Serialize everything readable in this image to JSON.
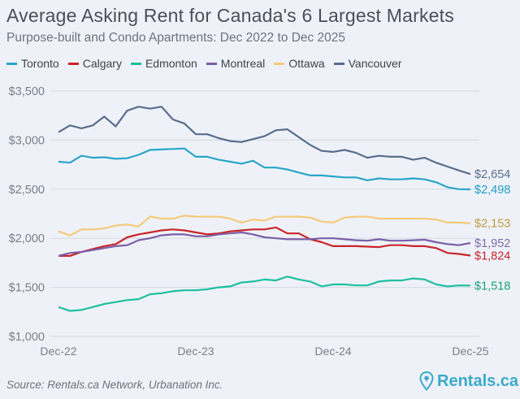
{
  "title": "Average Asking Rent for Canada's 6 Largest Markets",
  "subtitle": "Purpose-built and Condo Apartments: Dec 2022 to Dec 2025",
  "source": "Source: Rentals.ca Network, Urbanation Inc.",
  "logo_text": "Rentals.ca",
  "chart_data": {
    "type": "line",
    "title": "Average Asking Rent for Canada's 6 Largest Markets",
    "xlabel": "",
    "ylabel": "",
    "x_ticks": [
      "Dec-22",
      "Dec-23",
      "Dec-24",
      "Dec-25"
    ],
    "x_tick_index": [
      0,
      12,
      24,
      36
    ],
    "y_ticks": [
      "$1,000",
      "$1,500",
      "$2,000",
      "$2,500",
      "$3,000",
      "$3,500"
    ],
    "y_tick_values": [
      1000,
      1500,
      2000,
      2500,
      3000,
      3500
    ],
    "ylim": [
      1000,
      3500
    ],
    "grid": true,
    "legend_position": "top",
    "n_points": 37,
    "series": [
      {
        "name": "Toronto",
        "color": "#2aa5c8",
        "label_color": "#1f9cbf",
        "end_label": "$2,498",
        "values": [
          2780,
          2770,
          2840,
          2820,
          2825,
          2810,
          2815,
          2850,
          2900,
          2905,
          2910,
          2915,
          2830,
          2830,
          2800,
          2780,
          2760,
          2790,
          2720,
          2720,
          2700,
          2670,
          2640,
          2640,
          2630,
          2620,
          2620,
          2590,
          2610,
          2600,
          2600,
          2610,
          2600,
          2570,
          2520,
          2500,
          2498
        ]
      },
      {
        "name": "Calgary",
        "color": "#c8262a",
        "label_color": "#c8262a",
        "end_label": "$1,824",
        "values": [
          1820,
          1820,
          1860,
          1890,
          1920,
          1940,
          2010,
          2040,
          2060,
          2080,
          2090,
          2080,
          2060,
          2040,
          2050,
          2070,
          2080,
          2090,
          2090,
          2110,
          2050,
          2050,
          1990,
          1960,
          1920,
          1920,
          1920,
          1915,
          1910,
          1930,
          1930,
          1920,
          1920,
          1900,
          1850,
          1840,
          1824
        ]
      },
      {
        "name": "Edmonton",
        "color": "#1fbfa0",
        "label_color": "#1aa07d",
        "end_label": "$1,518",
        "values": [
          1300,
          1260,
          1270,
          1300,
          1330,
          1350,
          1370,
          1380,
          1430,
          1440,
          1460,
          1470,
          1470,
          1480,
          1500,
          1510,
          1550,
          1560,
          1580,
          1570,
          1610,
          1580,
          1560,
          1510,
          1530,
          1530,
          1520,
          1520,
          1560,
          1570,
          1570,
          1590,
          1580,
          1530,
          1510,
          1520,
          1518
        ]
      },
      {
        "name": "Montreal",
        "color": "#7b5ea7",
        "label_color": "#7e6ca6",
        "end_label": "$1,952",
        "values": [
          1820,
          1850,
          1860,
          1880,
          1900,
          1920,
          1930,
          1980,
          2000,
          2030,
          2040,
          2040,
          2020,
          2020,
          2040,
          2050,
          2060,
          2040,
          2010,
          2000,
          1990,
          1990,
          1990,
          2000,
          2000,
          1990,
          1980,
          1975,
          1990,
          1975,
          1975,
          1980,
          1985,
          1960,
          1940,
          1930,
          1952
        ]
      },
      {
        "name": "Ottawa",
        "color": "#f5c97a",
        "label_color": "#c09a3f",
        "end_label": "$2,153",
        "values": [
          2070,
          2030,
          2090,
          2090,
          2100,
          2130,
          2140,
          2120,
          2220,
          2200,
          2200,
          2230,
          2220,
          2220,
          2220,
          2200,
          2160,
          2190,
          2180,
          2220,
          2220,
          2220,
          2210,
          2170,
          2160,
          2210,
          2220,
          2220,
          2200,
          2200,
          2200,
          2200,
          2200,
          2190,
          2160,
          2160,
          2153
        ]
      },
      {
        "name": "Vancouver",
        "color": "#5a6d8c",
        "label_color": "#5a6d8c",
        "end_label": "$2,654",
        "values": [
          3080,
          3150,
          3120,
          3150,
          3240,
          3140,
          3300,
          3340,
          3320,
          3340,
          3210,
          3170,
          3060,
          3060,
          3020,
          2990,
          2980,
          3010,
          3040,
          3100,
          3110,
          3030,
          2950,
          2890,
          2880,
          2900,
          2870,
          2820,
          2840,
          2830,
          2830,
          2800,
          2820,
          2770,
          2730,
          2690,
          2654
        ]
      }
    ]
  }
}
